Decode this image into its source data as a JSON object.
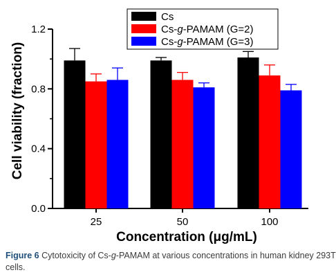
{
  "chart_data": {
    "type": "bar",
    "categories": [
      "25",
      "50",
      "100"
    ],
    "series": [
      {
        "name": "Cs",
        "color": "#000000",
        "values": [
          0.99,
          0.99,
          1.01
        ],
        "errors": [
          0.08,
          0.02,
          0.04
        ]
      },
      {
        "name": "Cs-g-PAMAM (G=2)",
        "name_prefix": "Cs-",
        "name_italic": "g",
        "name_suffix": "-PAMAM (G=2)",
        "color": "#ff0000",
        "values": [
          0.85,
          0.86,
          0.89
        ],
        "errors": [
          0.05,
          0.05,
          0.07
        ]
      },
      {
        "name": "Cs-g-PAMAM (G=3)",
        "name_prefix": "Cs-",
        "name_italic": "g",
        "name_suffix": "-PAMAM (G=3)",
        "color": "#0000ff",
        "values": [
          0.86,
          0.81,
          0.79
        ],
        "errors": [
          0.08,
          0.03,
          0.04
        ]
      }
    ],
    "yticks": [
      "0.0",
      "0.4",
      "0.8",
      "1.2"
    ],
    "ytick_values": [
      0.0,
      0.4,
      0.8,
      1.2
    ],
    "ylim": [
      0,
      1.2
    ],
    "xlabel": "Concentration (μg/mL)",
    "ylabel": "Cell viability (fraction)",
    "legend": "top-center",
    "grid": false
  },
  "caption": {
    "label": "Figure 6",
    "text_prefix": "Cytotoxicity of Cs-",
    "text_italic": "g",
    "text_suffix": "-PAMAM at various concentrations in human kidney 293T cells."
  }
}
